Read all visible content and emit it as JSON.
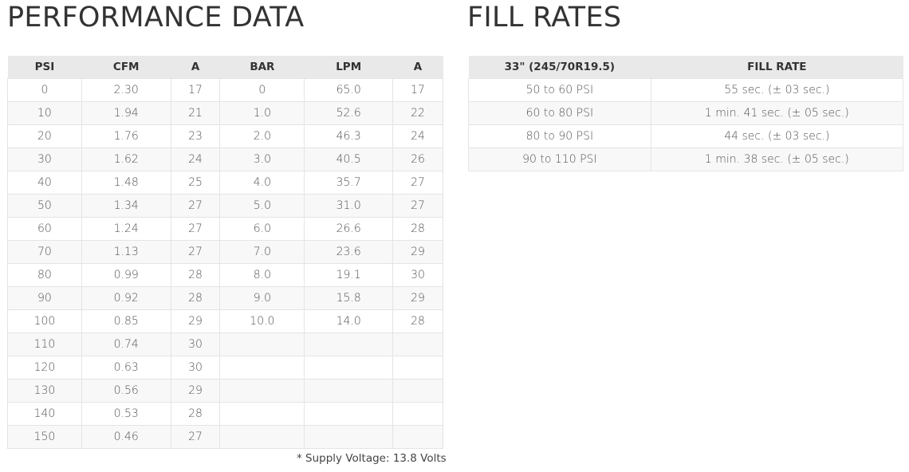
{
  "performance": {
    "title": "PERFORMANCE DATA",
    "headers": [
      "PSI",
      "CFM",
      "A",
      "BAR",
      "LPM",
      "A"
    ],
    "rows": [
      [
        "0",
        "2.30",
        "17",
        "0",
        "65.0",
        "17"
      ],
      [
        "10",
        "1.94",
        "21",
        "1.0",
        "52.6",
        "22"
      ],
      [
        "20",
        "1.76",
        "23",
        "2.0",
        "46.3",
        "24"
      ],
      [
        "30",
        "1.62",
        "24",
        "3.0",
        "40.5",
        "26"
      ],
      [
        "40",
        "1.48",
        "25",
        "4.0",
        "35.7",
        "27"
      ],
      [
        "50",
        "1.34",
        "27",
        "5.0",
        "31.0",
        "27"
      ],
      [
        "60",
        "1.24",
        "27",
        "6.0",
        "26.6",
        "28"
      ],
      [
        "70",
        "1.13",
        "27",
        "7.0",
        "23.6",
        "29"
      ],
      [
        "80",
        "0.99",
        "28",
        "8.0",
        "19.1",
        "30"
      ],
      [
        "90",
        "0.92",
        "28",
        "9.0",
        "15.8",
        "29"
      ],
      [
        "100",
        "0.85",
        "29",
        "10.0",
        "14.0",
        "28"
      ],
      [
        "110",
        "0.74",
        "30",
        "",
        "",
        ""
      ],
      [
        "120",
        "0.63",
        "30",
        "",
        "",
        ""
      ],
      [
        "130",
        "0.56",
        "29",
        "",
        "",
        ""
      ],
      [
        "140",
        "0.53",
        "28",
        "",
        "",
        ""
      ],
      [
        "150",
        "0.46",
        "27",
        "",
        "",
        ""
      ]
    ],
    "note": "* Supply Voltage: 13.8 Volts"
  },
  "fill_rates": {
    "title": "FILL RATES",
    "headers": [
      "33\" (245/70R19.5)",
      "FILL RATE"
    ],
    "rows": [
      [
        "50 to 60 PSI",
        "55 sec. (± 03 sec.)"
      ],
      [
        "60 to 80 PSI",
        "1 min. 41 sec. (± 05 sec.)"
      ],
      [
        "80 to 90 PSI",
        "44 sec. (± 03 sec.)"
      ],
      [
        "90 to 110 PSI",
        "1 min. 38 sec. (± 05 sec.)"
      ]
    ]
  }
}
